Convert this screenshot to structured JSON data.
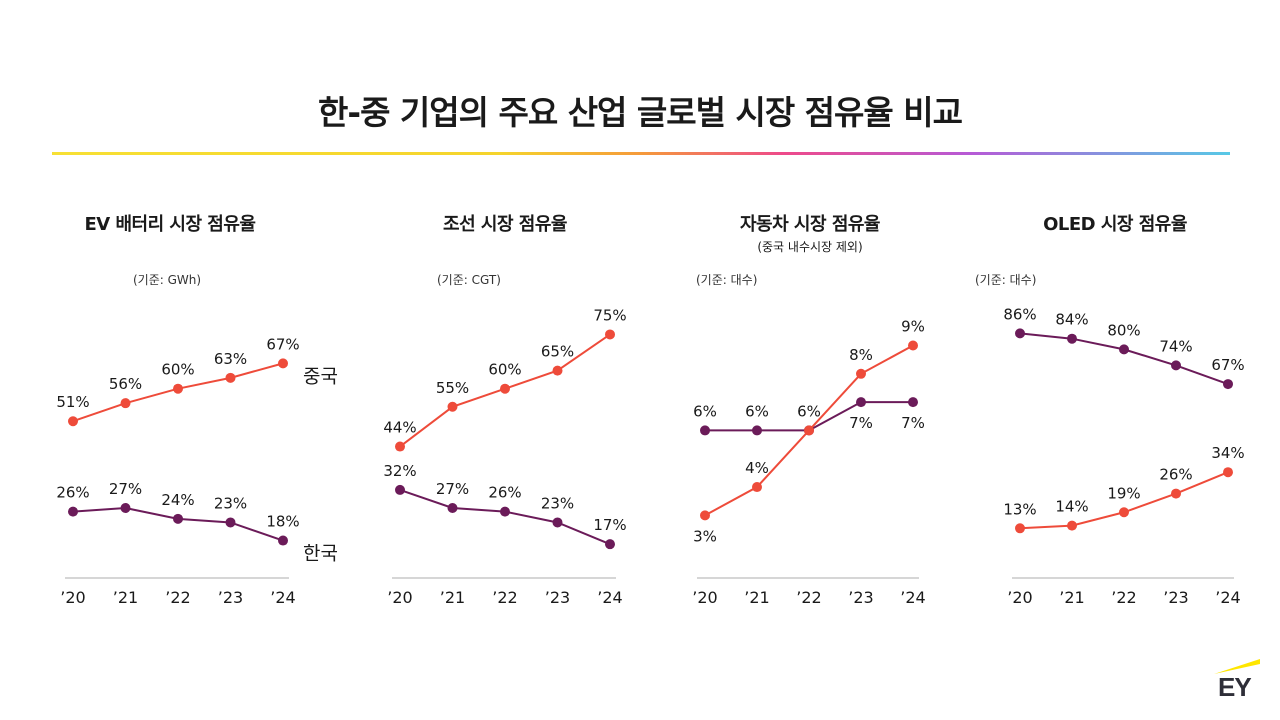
{
  "title": "한-중 기업의 주요 산업 글로벌 시장 점유율 비교",
  "brand": "EY",
  "colors": {
    "china": "#ee4b3a",
    "korea": "#6b1b59",
    "axis": "#c8c8c8"
  },
  "chart_data": [
    {
      "type": "line",
      "title": "EV 배터리 시장 점유율",
      "subtitle": "",
      "unit_note": "(기준: GWh)",
      "categories": [
        "’20",
        "’21",
        "’22",
        "’23",
        "’24"
      ],
      "ylim": [
        0,
        80
      ],
      "series": [
        {
          "name": "중국",
          "values": [
            51,
            56,
            60,
            63,
            67
          ],
          "labels": [
            "51%",
            "56%",
            "60%",
            "63%",
            "67%"
          ],
          "show_name": true
        },
        {
          "name": "한국",
          "values": [
            26,
            27,
            24,
            23,
            18
          ],
          "labels": [
            "26%",
            "27%",
            "24%",
            "23%",
            "18%"
          ],
          "show_name": true
        }
      ]
    },
    {
      "type": "line",
      "title": "조선 시장 점유율",
      "subtitle": "",
      "unit_note": "(기준: CGT)",
      "categories": [
        "’20",
        "’21",
        "’22",
        "’23",
        "’24"
      ],
      "ylim": [
        0,
        80
      ],
      "series": [
        {
          "name": "중국",
          "values": [
            44,
            55,
            60,
            65,
            75
          ],
          "labels": [
            "44%",
            "55%",
            "60%",
            "65%",
            "75%"
          ],
          "show_name": false
        },
        {
          "name": "한국",
          "values": [
            32,
            27,
            26,
            23,
            17
          ],
          "labels": [
            "32%",
            "27%",
            "26%",
            "23%",
            "17%"
          ],
          "show_name": false
        }
      ]
    },
    {
      "type": "line",
      "title": "자동차 시장 점유율",
      "subtitle": "(중국 내수시장 제외)",
      "unit_note": "(기준: 대수)",
      "categories": [
        "’20",
        "’21",
        "’22",
        "’23",
        "’24"
      ],
      "ylim": [
        0,
        10
      ],
      "series": [
        {
          "name": "중국",
          "values": [
            3,
            4,
            6,
            8,
            9
          ],
          "labels": [
            "3%",
            "4%",
            "",
            "8%",
            "9%"
          ],
          "show_name": false
        },
        {
          "name": "한국",
          "values": [
            6,
            6,
            6,
            7,
            7
          ],
          "labels": [
            "6%",
            "6%",
            "6%",
            "7%",
            "7%"
          ],
          "show_name": false
        }
      ]
    },
    {
      "type": "line",
      "title": "OLED 시장 점유율",
      "subtitle": "",
      "unit_note": "(기준: 대수)",
      "categories": [
        "’20",
        "’21",
        "’22",
        "’23",
        "’24"
      ],
      "ylim": [
        0,
        90
      ],
      "series": [
        {
          "name": "중국",
          "values": [
            13,
            14,
            19,
            26,
            34
          ],
          "labels": [
            "13%",
            "14%",
            "19%",
            "26%",
            "34%"
          ],
          "show_name": false
        },
        {
          "name": "한국",
          "values": [
            86,
            84,
            80,
            74,
            67
          ],
          "labels": [
            "86%",
            "84%",
            "80%",
            "74%",
            "67%"
          ],
          "show_name": false
        }
      ]
    }
  ]
}
